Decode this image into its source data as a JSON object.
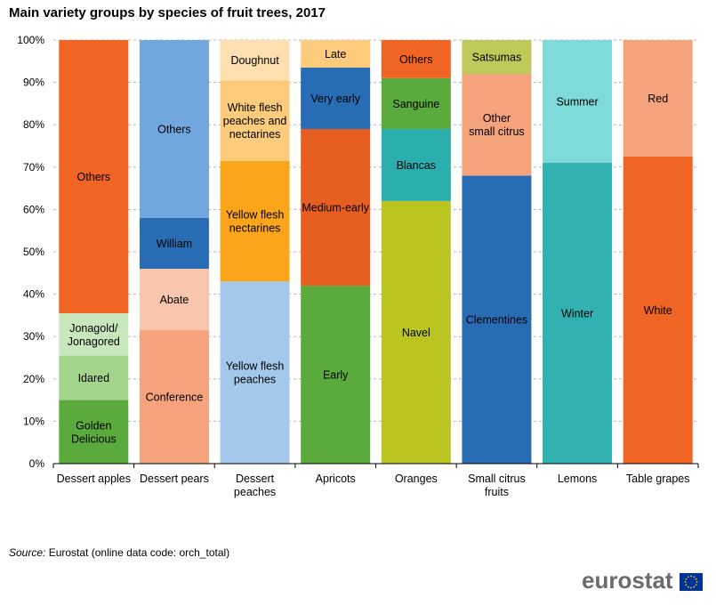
{
  "title": "Main variety groups by species of fruit trees, 2017",
  "source": {
    "label": "Source:",
    "text": "Eurostat (online data code: orch_total)"
  },
  "logo": {
    "text": "eurostat",
    "flag_icon": "eu-flag-icon",
    "flag_color": "#003399",
    "star_color": "#FFCC00"
  },
  "chart_data": {
    "type": "bar",
    "stacked": true,
    "normalized": true,
    "ylim": [
      0,
      100
    ],
    "y_ticks": [
      "0%",
      "10%",
      "20%",
      "30%",
      "40%",
      "50%",
      "60%",
      "70%",
      "80%",
      "90%",
      "100%"
    ],
    "grid": "horizontal-dashed",
    "legend": "none",
    "categories": [
      {
        "name": [
          "Dessert apples"
        ],
        "segments": [
          {
            "label": [
              "Golden",
              "Delicious"
            ],
            "value": 15,
            "color": "#5BAA3E"
          },
          {
            "label": [
              "Idared"
            ],
            "value": 10.5,
            "color": "#A2D48C"
          },
          {
            "label": [
              "Jonagold/",
              "Jonagored"
            ],
            "value": 10,
            "color": "#C9E7BC"
          },
          {
            "label": [
              "Others"
            ],
            "value": 64.5,
            "color": "#F06424"
          }
        ]
      },
      {
        "name": [
          "Dessert pears"
        ],
        "segments": [
          {
            "label": [
              "Conference"
            ],
            "value": 31.5,
            "color": "#F5A37C"
          },
          {
            "label": [
              "Abate"
            ],
            "value": 14.5,
            "color": "#F9C5AD"
          },
          {
            "label": [
              "William"
            ],
            "value": 12,
            "color": "#286CB4"
          },
          {
            "label": [
              "Others"
            ],
            "value": 42,
            "color": "#71A6DE"
          }
        ]
      },
      {
        "name": [
          "Dessert",
          "peaches"
        ],
        "segments": [
          {
            "label": [
              "Yellow flesh",
              "peaches"
            ],
            "value": 43,
            "color": "#A3C8EC"
          },
          {
            "label": [
              "Yellow flesh",
              "nectarines"
            ],
            "value": 28.5,
            "color": "#FBA51A"
          },
          {
            "label": [
              "White flesh",
              "peaches and",
              "nectarines"
            ],
            "value": 19,
            "color": "#FCCB7C"
          },
          {
            "label": [
              "Doughnut"
            ],
            "value": 9.5,
            "color": "#FEE0B0"
          }
        ]
      },
      {
        "name": [
          "Apricots"
        ],
        "segments": [
          {
            "label": [
              "Early"
            ],
            "value": 42,
            "color": "#5BAA3E"
          },
          {
            "label": [
              "Medium-early"
            ],
            "value": 37,
            "color": "#E65E21"
          },
          {
            "label": [
              "Very early"
            ],
            "value": 14.5,
            "color": "#286CB4"
          },
          {
            "label": [
              "Late"
            ],
            "value": 6.5,
            "color": "#FCCB7C"
          }
        ]
      },
      {
        "name": [
          "Oranges"
        ],
        "segments": [
          {
            "label": [
              "Navel"
            ],
            "value": 62,
            "color": "#BAC521"
          },
          {
            "label": [
              "Blancas"
            ],
            "value": 17,
            "color": "#2BAEAE"
          },
          {
            "label": [
              "Sanguine"
            ],
            "value": 12,
            "color": "#5BAA3E"
          },
          {
            "label": [
              "Others"
            ],
            "value": 9,
            "color": "#F06424"
          }
        ]
      },
      {
        "name": [
          "Small citrus",
          "fruits"
        ],
        "segments": [
          {
            "label": [
              "Clementines"
            ],
            "value": 68,
            "color": "#286CB4"
          },
          {
            "label": [
              "Other",
              "small citrus"
            ],
            "value": 24,
            "color": "#F5A37C"
          },
          {
            "label": [
              "Satsumas"
            ],
            "value": 8,
            "color": "#BEC95A"
          }
        ]
      },
      {
        "name": [
          "Lemons"
        ],
        "segments": [
          {
            "label": [
              "Winter"
            ],
            "value": 71,
            "color": "#31B1B1"
          },
          {
            "label": [
              "Summer"
            ],
            "value": 29,
            "color": "#7FDADA"
          }
        ]
      },
      {
        "name": [
          "Table grapes"
        ],
        "segments": [
          {
            "label": [
              "White"
            ],
            "value": 72.5,
            "color": "#F06424"
          },
          {
            "label": [
              "Red"
            ],
            "value": 27.5,
            "color": "#F5A37C"
          }
        ]
      }
    ]
  }
}
